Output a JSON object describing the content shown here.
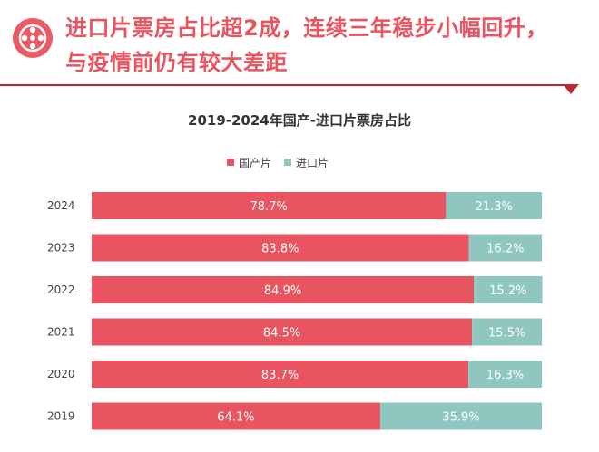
{
  "header": {
    "title_line1": "进口片票房占比超2成，连续三年稳步小幅回升，",
    "title_line2": "与疫情前仍有较大差距"
  },
  "icons": {
    "logo": "film-reel-icon"
  },
  "colors": {
    "accent": "#e8545f",
    "domestic": "#e8545f",
    "imported": "#8fc6c0",
    "rule": "#c0282f"
  },
  "chart_data": {
    "type": "bar",
    "orientation": "horizontal",
    "stacked": true,
    "normalized": true,
    "title": "2019-2024年国产-进口片票房占比",
    "categories": [
      "2024",
      "2023",
      "2022",
      "2021",
      "2020",
      "2019"
    ],
    "series": [
      {
        "name": "国产片",
        "values": [
          78.7,
          83.8,
          84.9,
          84.5,
          83.7,
          64.1
        ],
        "labels": [
          "78.7%",
          "83.8%",
          "84.9%",
          "84.5%",
          "83.7%",
          "64.1%"
        ]
      },
      {
        "name": "进口片",
        "values": [
          21.3,
          16.2,
          15.2,
          15.5,
          16.3,
          35.9
        ],
        "labels": [
          "21.3%",
          "16.2%",
          "15.2%",
          "15.5%",
          "16.3%",
          "35.9%"
        ]
      }
    ],
    "xlim": [
      0,
      100
    ],
    "legend": "top-center"
  }
}
